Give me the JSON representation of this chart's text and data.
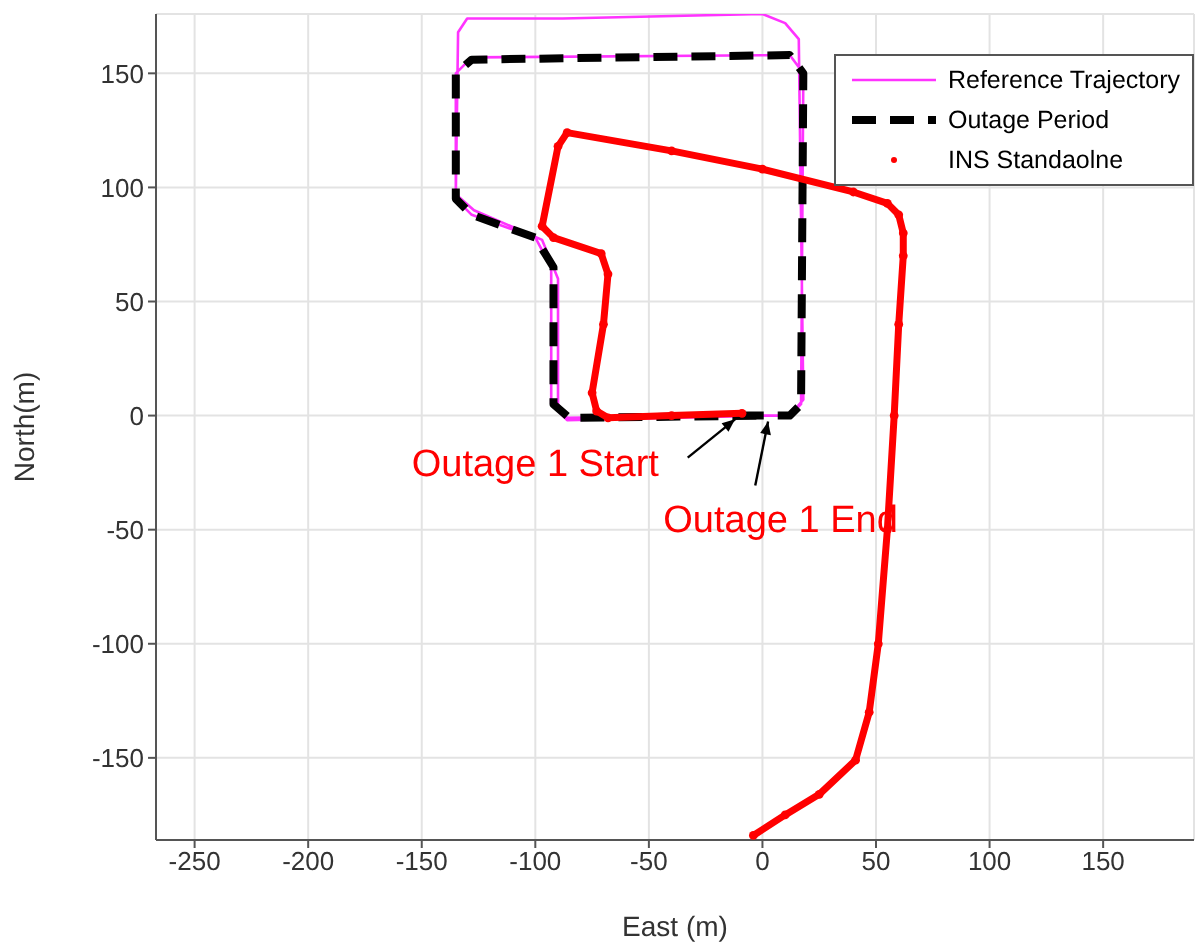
{
  "chart_data": {
    "type": "line",
    "xlabel": "East (m)",
    "ylabel": "North(m)",
    "xlim": [
      -267,
      190
    ],
    "ylim": [
      -186,
      176
    ],
    "xticks": [
      -250,
      -200,
      -150,
      -100,
      -50,
      0,
      50,
      100,
      150
    ],
    "yticks": [
      -150,
      -100,
      -50,
      0,
      50,
      100,
      150
    ],
    "grid": true,
    "legend": "top right",
    "series": [
      {
        "name": "Reference Trajectory",
        "color": "#ff33ff",
        "line_style": "solid",
        "x": [
          -30,
          12,
          18,
          16,
          10,
          0,
          -88,
          -130,
          -134,
          -135,
          -127,
          -97,
          -90,
          -90,
          -86,
          -10,
          12,
          17,
          18,
          12,
          -128,
          -135,
          -135,
          -128,
          -100,
          -93,
          -93,
          -86,
          3
        ],
        "values": [
          0,
          0,
          7,
          165,
          172,
          176,
          174,
          174,
          168,
          97,
          90,
          77,
          60,
          5,
          -1,
          0,
          0,
          5,
          150,
          158,
          157,
          150,
          95,
          88,
          78,
          65,
          5,
          -2,
          0
        ]
      },
      {
        "name": "Outage Period",
        "color": "#000000",
        "line_style": "dashed",
        "x": [
          -10,
          12,
          17,
          18,
          12,
          -128,
          -135,
          -135,
          -128,
          -100,
          -92,
          -92,
          -85,
          3
        ],
        "values": [
          0,
          0,
          5,
          150,
          158,
          156,
          150,
          95,
          88,
          78,
          65,
          5,
          -1,
          0
        ]
      },
      {
        "name": "INS Standaolne",
        "color": "#ff0000",
        "marker": "circle",
        "x": [
          -4,
          10,
          25,
          41,
          47,
          51,
          55,
          58,
          60,
          62,
          62,
          60,
          55,
          40,
          0,
          -40,
          -86,
          -90,
          -97,
          -92,
          -71,
          -68,
          -70,
          -75,
          -73,
          -68,
          -40,
          -9
        ],
        "values": [
          -184,
          -175,
          -166,
          -151,
          -130,
          -100,
          -50,
          0,
          40,
          70,
          80,
          88,
          93,
          98,
          108,
          116,
          124,
          118,
          83,
          78,
          71,
          62,
          40,
          10,
          2,
          -1,
          0,
          1
        ]
      }
    ],
    "annotations": [
      {
        "text": "Outage 1 Start",
        "x": -10,
        "y": 0
      },
      {
        "text": "Outage 1 End",
        "x": 3,
        "y": 0
      }
    ]
  }
}
